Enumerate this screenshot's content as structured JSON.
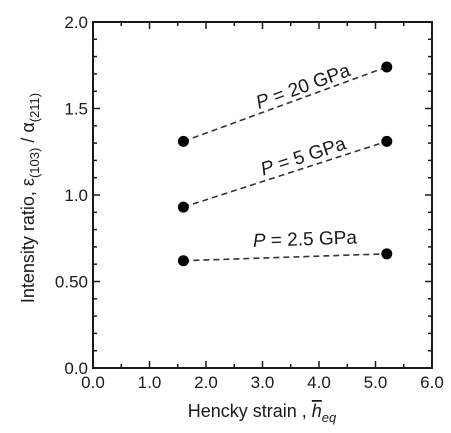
{
  "chart_data": {
    "type": "scatter",
    "title": "",
    "xlabel": "Hencky strain , ",
    "xlabel_symbol": "h",
    "xlabel_subscript": "eq",
    "ylabel": "Intensity ratio, ε",
    "ylabel_sub1": "(103)",
    "ylabel_mid": " / α",
    "ylabel_sub2": "(211)",
    "xlim": [
      0.0,
      6.0
    ],
    "ylim": [
      0.0,
      2.0
    ],
    "xticks": [
      0.0,
      1.0,
      2.0,
      3.0,
      4.0,
      5.0,
      6.0
    ],
    "xtick_labels": [
      "0.0",
      "1.0",
      "2.0",
      "3.0",
      "4.0",
      "5.0",
      "6.0"
    ],
    "yticks": [
      0.0,
      0.5,
      1.0,
      1.5,
      2.0
    ],
    "ytick_labels": [
      "0.0",
      "0.50",
      "1.0",
      "1.5",
      "2.0"
    ],
    "grid": false,
    "legend": "none",
    "marker_color": "#000000",
    "line_style": "dashed",
    "series": [
      {
        "name": "P = 20 GPa",
        "label_var": "P",
        "label_rest": " = 20 GPa",
        "x": [
          1.6,
          5.2
        ],
        "y": [
          1.31,
          1.74
        ]
      },
      {
        "name": "P = 5 GPa",
        "label_var": "P",
        "label_rest": " = 5 GPa",
        "x": [
          1.6,
          5.2
        ],
        "y": [
          0.93,
          1.31
        ]
      },
      {
        "name": "P = 2.5 GPa",
        "label_var": "P",
        "label_rest": " = 2.5 GPa",
        "x": [
          1.6,
          5.2
        ],
        "y": [
          0.62,
          0.66
        ]
      }
    ]
  }
}
